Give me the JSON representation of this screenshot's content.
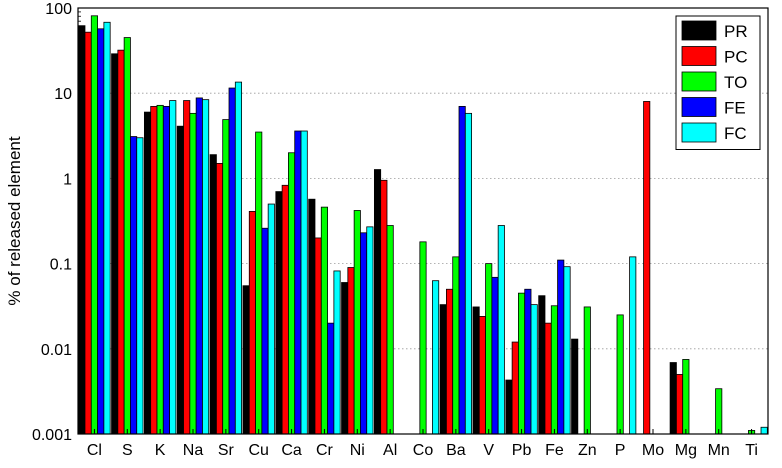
{
  "chart_data": {
    "type": "bar",
    "title": "",
    "xlabel": "",
    "ylabel": "% of released element",
    "yscale": "log",
    "ylim": [
      0.001,
      100
    ],
    "yticks": [
      "0.001",
      "0.01",
      "0.1",
      "1",
      "10",
      "100"
    ],
    "grid": "horizontal dotted at decades",
    "legend_position": "top-right",
    "categories": [
      "Cl",
      "S",
      "K",
      "Na",
      "Sr",
      "Cu",
      "Ca",
      "Cr",
      "Ni",
      "Al",
      "Co",
      "Ba",
      "V",
      "Pb",
      "Fe",
      "Zn",
      "P",
      "Mo",
      "Mg",
      "Mn",
      "Ti"
    ],
    "series": [
      {
        "name": "PR",
        "color": "#000000",
        "values": [
          62,
          29,
          6,
          4.1,
          1.9,
          0.055,
          0.7,
          0.57,
          0.06,
          1.27,
          null,
          0.033,
          0.031,
          0.0043,
          0.042,
          0.013,
          null,
          null,
          0.0069,
          null,
          null
        ]
      },
      {
        "name": "PC",
        "color": "#ff0000",
        "values": [
          52,
          32,
          7,
          8.2,
          1.5,
          0.41,
          0.83,
          0.2,
          0.09,
          0.95,
          null,
          0.05,
          0.024,
          0.012,
          0.02,
          null,
          null,
          8.0,
          0.005,
          null,
          null
        ]
      },
      {
        "name": "TO",
        "color": "#00ff00",
        "values": [
          81,
          45,
          7.2,
          5.8,
          4.9,
          3.5,
          2.0,
          0.46,
          0.42,
          0.28,
          0.18,
          0.12,
          0.1,
          0.045,
          0.032,
          0.031,
          0.025,
          null,
          0.0075,
          0.0034,
          0.0011
        ]
      },
      {
        "name": "FE",
        "color": "#0000ff",
        "values": [
          57,
          3.1,
          7,
          8.8,
          11.5,
          0.26,
          3.6,
          0.02,
          0.23,
          null,
          null,
          7.0,
          0.069,
          0.05,
          0.11,
          null,
          null,
          null,
          null,
          null,
          null
        ]
      },
      {
        "name": "FC",
        "color": "#00ffff",
        "values": [
          68,
          3.0,
          8.2,
          8.4,
          13.5,
          0.5,
          3.6,
          0.082,
          0.27,
          null,
          0.063,
          5.8,
          0.28,
          0.033,
          0.092,
          null,
          0.12,
          null,
          null,
          null,
          0.0012
        ]
      }
    ]
  }
}
